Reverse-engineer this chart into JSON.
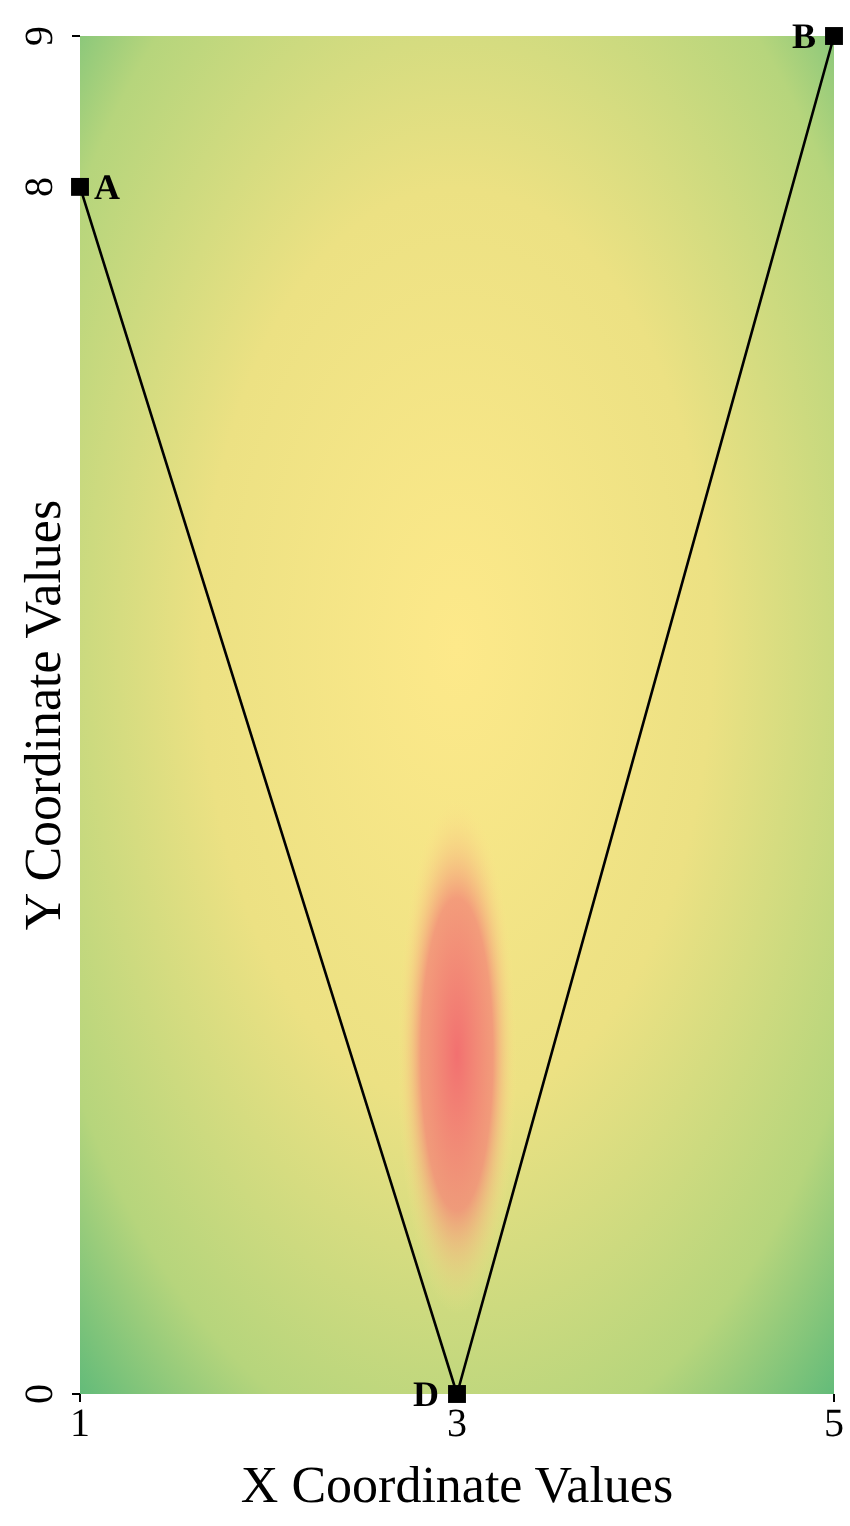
{
  "chart_data": {
    "type": "line",
    "xlabel": "X Coordinate Values",
    "ylabel": "Y Coordinate Values",
    "x": [
      1,
      3,
      5
    ],
    "series": [
      {
        "color": "#000000",
        "values": [
          8,
          0,
          9
        ]
      }
    ],
    "marker": "square",
    "line_style": "solid",
    "grid": false,
    "xlim": [
      1,
      5
    ],
    "ylim": [
      0,
      9
    ],
    "xticks": [
      1,
      3,
      5
    ],
    "yticks": [
      0,
      8,
      9
    ],
    "annotations": [
      {
        "text": "A",
        "x": 1,
        "y": 8
      },
      {
        "text": "D",
        "x": 3,
        "y": 0
      },
      {
        "text": "B",
        "x": 5,
        "y": 9
      }
    ]
  }
}
